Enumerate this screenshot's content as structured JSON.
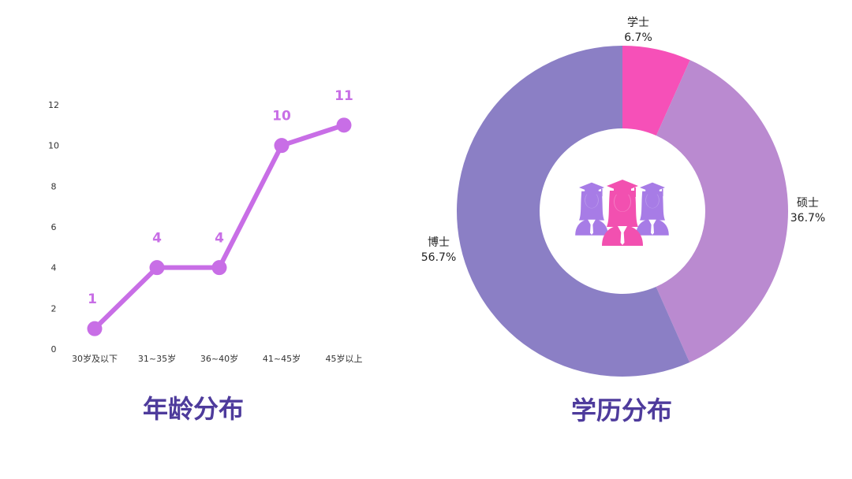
{
  "colors": {
    "line": "#c86ee6",
    "label": "#c86ee6",
    "title": "#4e3b9c",
    "center_icon_pink": "#f250b0",
    "center_icon_purple": "#a77ce6"
  },
  "titles": {
    "age": "年龄分布",
    "education": "学历分布"
  },
  "chart_data": [
    {
      "type": "line",
      "categories": [
        "30岁及以下",
        "31~35岁",
        "36~40岁",
        "41~45岁",
        "45岁以上"
      ],
      "values": [
        1,
        4,
        4,
        10,
        11
      ],
      "data_labels": [
        "1",
        "4",
        "4",
        "10",
        "11"
      ],
      "yticks": [
        "0",
        "2",
        "4",
        "6",
        "8",
        "10",
        "12"
      ],
      "ylim": [
        0,
        12
      ],
      "grid": false,
      "legend": "none"
    },
    {
      "type": "pie",
      "donut": true,
      "center_icon": "graduates-icon",
      "slices": [
        {
          "label": "学士",
          "value": 6.7,
          "text": "6.7%",
          "color": "#f650b8"
        },
        {
          "label": "硕士",
          "value": 36.7,
          "text": "36.7%",
          "color": "#ba8ad0"
        },
        {
          "label": "博士",
          "value": 56.7,
          "text": "56.7%",
          "color": "#8b7fc5"
        }
      ]
    }
  ]
}
